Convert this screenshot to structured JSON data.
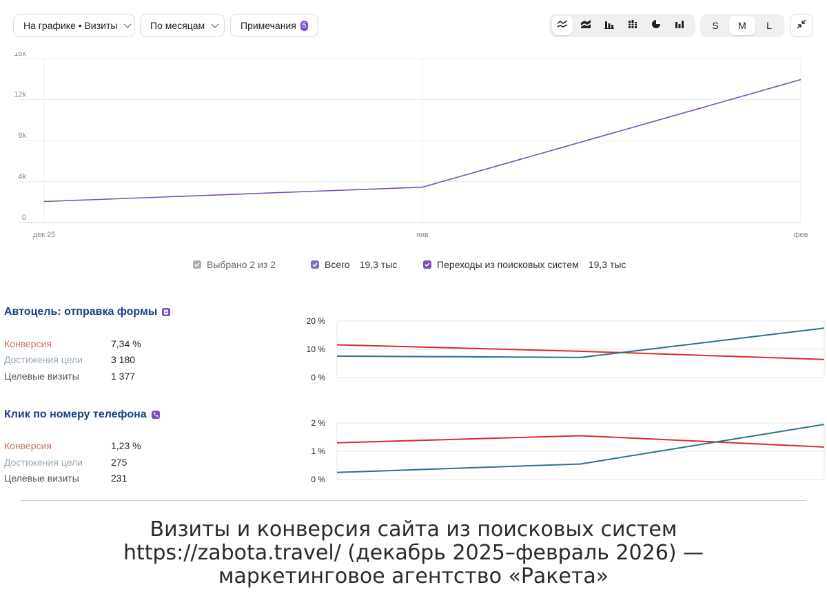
{
  "toolbar": {
    "chart_select": "На графике • Визиты",
    "period_select": "По месяцам",
    "notes_label": "Примечания",
    "notes_count": "5",
    "sizes": [
      "S",
      "M",
      "L"
    ],
    "active_size": "M",
    "chart_type_icons": [
      "line-chart-icon",
      "stacked-area-icon",
      "column-chart-icon",
      "stacked-column-icon",
      "pie-chart-icon",
      "bar-chart-icon"
    ],
    "active_chart_type": "line-chart-icon"
  },
  "main_chart": {
    "y_ticks": [
      "16k",
      "12k",
      "8k",
      "4k",
      "0"
    ],
    "x_ticks": [
      "дек 25",
      "янв",
      "фев"
    ],
    "legend": {
      "selected": "Выбрано 2 из 2",
      "series": [
        {
          "name": "Всего",
          "value": "19,3 тыс"
        },
        {
          "name": "Переходы из поисковых систем",
          "value": "19,3 тыс"
        }
      ]
    }
  },
  "goals": [
    {
      "title": "Автоцель: отправка формы",
      "icon": "form-icon",
      "metrics": [
        {
          "label": "Конверсия",
          "value": "7,34 %"
        },
        {
          "label": "Достижения цели",
          "value": "3 180"
        },
        {
          "label": "Целевые визиты",
          "value": "1 377"
        }
      ],
      "y_ticks": [
        "20 %",
        "10 %",
        "0 %"
      ]
    },
    {
      "title": "Клик по номеру телефона",
      "icon": "phone-icon",
      "metrics": [
        {
          "label": "Конверсия",
          "value": "1,23 %"
        },
        {
          "label": "Достижения цели",
          "value": "275"
        },
        {
          "label": "Целевые визиты",
          "value": "231"
        }
      ],
      "y_ticks": [
        "2 %",
        "1 %",
        "0 %"
      ]
    }
  ],
  "colors": {
    "main_line": "#7b4fb3",
    "accent": "#7a4fc9",
    "red_line": "#d42d2d",
    "blue_line": "#2e6f8e",
    "goal_title": "#1a3e8c"
  },
  "chart_data": [
    {
      "type": "line",
      "x": [
        "дек 25",
        "янв",
        "фев"
      ],
      "ylim": [
        0,
        16000
      ],
      "series": [
        {
          "name": "Переходы из поисковых систем",
          "values": [
            2050,
            3450,
            13950
          ]
        }
      ],
      "grid": true
    },
    {
      "type": "line",
      "x": [
        "дек 25",
        "янв",
        "фев"
      ],
      "ylim": [
        0,
        20
      ],
      "series": [
        {
          "values": [
            11.6,
            9.3,
            6.4
          ],
          "color": "#d42d2d"
        },
        {
          "values": [
            7.6,
            7.1,
            17.5
          ],
          "color": "#2e6f8e"
        }
      ]
    },
    {
      "type": "line",
      "x": [
        "дек 25",
        "янв",
        "фев"
      ],
      "ylim": [
        0,
        2
      ],
      "series": [
        {
          "values": [
            1.3,
            1.55,
            1.15
          ],
          "color": "#d42d2d"
        },
        {
          "values": [
            0.25,
            0.55,
            1.95
          ],
          "color": "#2e6f8e"
        }
      ]
    }
  ],
  "caption": {
    "line1": "Визиты и конверсия сайта из поисковых систем",
    "line2": "https://zabota.travel/ (декабрь 2025–февраль 2026) —",
    "line3": "маркетинговое агентство «Ракета»"
  }
}
